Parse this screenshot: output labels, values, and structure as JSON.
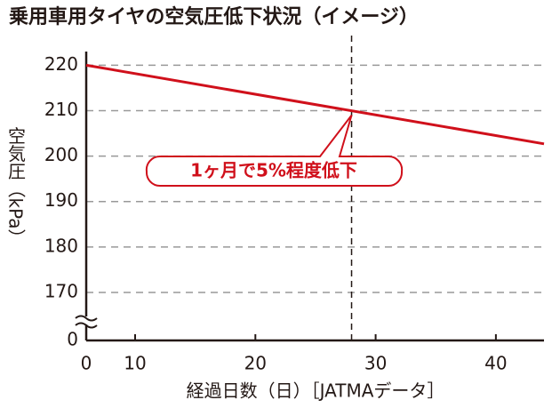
{
  "chart_data": {
    "type": "line",
    "title": "乗用車用タイヤの空気圧低下状況（イメージ）",
    "y_label": "空気圧（kPa）",
    "x_label": "経過日数（日）［JATMAデータ］",
    "annotation": "1ヶ月で5%程度低下",
    "x": [
      0,
      44
    ],
    "values": [
      220,
      202.7
    ],
    "color": "#d0101b",
    "reference_x": 28,
    "xlim": [
      0,
      44
    ],
    "xticks": [
      0,
      10,
      20,
      30,
      40
    ],
    "ylim": [
      0,
      223
    ],
    "yticks": [
      0,
      170,
      180,
      190,
      200,
      210,
      220
    ],
    "grid": true,
    "y_axis_break": true
  }
}
